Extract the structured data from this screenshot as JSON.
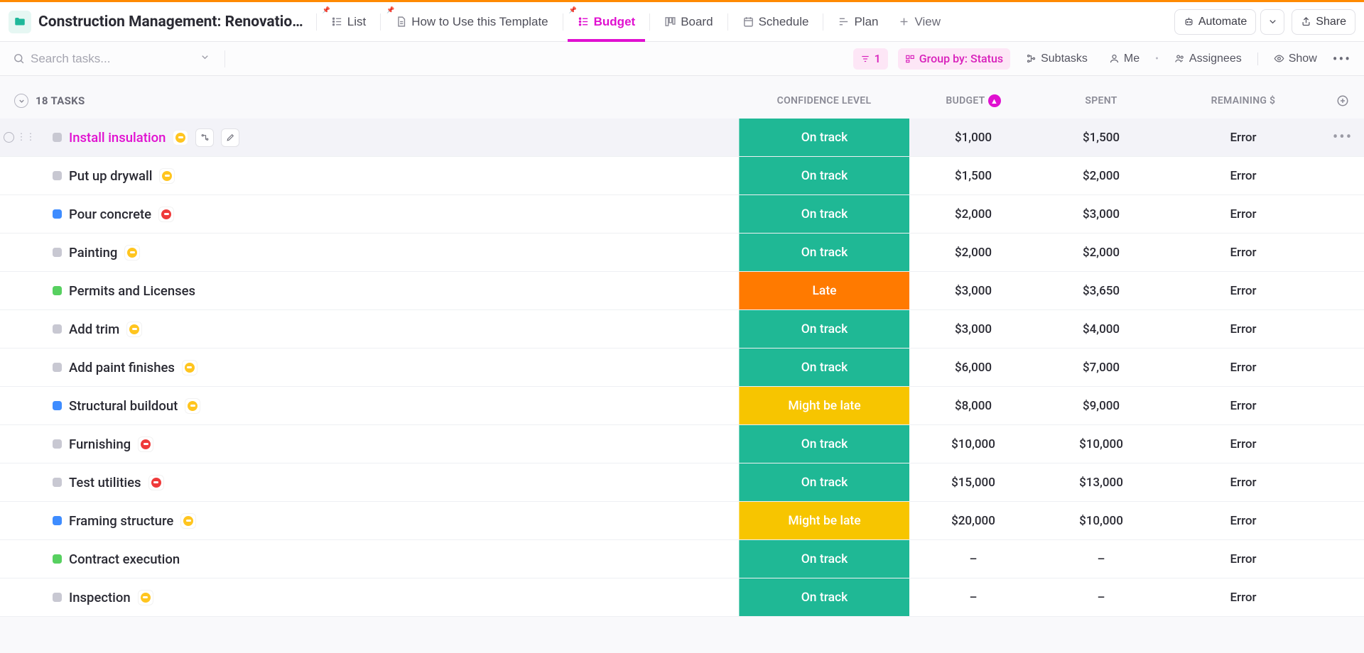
{
  "header": {
    "title": "Construction Management: Renovatio…",
    "tabs": [
      {
        "label": "List",
        "icon": "list",
        "active": false,
        "pinned": true
      },
      {
        "label": "How to Use this Template",
        "icon": "doc",
        "active": false,
        "pinned": true
      },
      {
        "label": "Budget",
        "icon": "list",
        "active": true,
        "pinned": true
      },
      {
        "label": "Board",
        "icon": "board",
        "active": false,
        "pinned": false
      },
      {
        "label": "Schedule",
        "icon": "calendar",
        "active": false,
        "pinned": false
      },
      {
        "label": "Plan",
        "icon": "gantt",
        "active": false,
        "pinned": false
      }
    ],
    "add_view_label": "View",
    "automate_label": "Automate",
    "share_label": "Share"
  },
  "toolbar": {
    "search_placeholder": "Search tasks...",
    "filter_count": "1",
    "group_label": "Group by: Status",
    "subtasks_label": "Subtasks",
    "me_label": "Me",
    "assignees_label": "Assignees",
    "show_label": "Show"
  },
  "table": {
    "tasks_count_label": "18 TASKS",
    "columns": {
      "confidence": "CONFIDENCE LEVEL",
      "budget": "BUDGET",
      "spent": "SPENT",
      "remaining": "REMAINING $"
    },
    "budget_sort_dir": "asc"
  },
  "colors": {
    "status_grey": "#c8c8d2",
    "status_blue": "#3e8cff",
    "status_green": "#57d060",
    "accent_pink": "#e010d0",
    "confidence": {
      "On track": "#1fb895",
      "Late": "#ff7a00",
      "Might be late": "#f7c500"
    }
  },
  "tasks": [
    {
      "name": "Install insulation",
      "name_color": "pink",
      "hover": true,
      "status": "grey",
      "priority": "yellow",
      "confidence": "On track",
      "budget": "$1,000",
      "spent": "$1,500",
      "remaining": "Error"
    },
    {
      "name": "Put up drywall",
      "status": "grey",
      "priority": "yellow",
      "confidence": "On track",
      "budget": "$1,500",
      "spent": "$2,000",
      "remaining": "Error"
    },
    {
      "name": "Pour concrete",
      "status": "blue",
      "priority": "red",
      "confidence": "On track",
      "budget": "$2,000",
      "spent": "$3,000",
      "remaining": "Error"
    },
    {
      "name": "Painting",
      "status": "grey",
      "priority": "yellow",
      "confidence": "On track",
      "budget": "$2,000",
      "spent": "$2,000",
      "remaining": "Error"
    },
    {
      "name": "Permits and Licenses",
      "status": "green",
      "priority": "none",
      "confidence": "Late",
      "budget": "$3,000",
      "spent": "$3,650",
      "remaining": "Error"
    },
    {
      "name": "Add trim",
      "status": "grey",
      "priority": "yellow",
      "confidence": "On track",
      "budget": "$3,000",
      "spent": "$4,000",
      "remaining": "Error"
    },
    {
      "name": "Add paint finishes",
      "status": "grey",
      "priority": "yellow",
      "confidence": "On track",
      "budget": "$6,000",
      "spent": "$7,000",
      "remaining": "Error"
    },
    {
      "name": "Structural buildout",
      "status": "blue",
      "priority": "yellow",
      "confidence": "Might be late",
      "budget": "$8,000",
      "spent": "$9,000",
      "remaining": "Error"
    },
    {
      "name": "Furnishing",
      "status": "grey",
      "priority": "red",
      "confidence": "On track",
      "budget": "$10,000",
      "spent": "$10,000",
      "remaining": "Error"
    },
    {
      "name": "Test utilities",
      "status": "grey",
      "priority": "red",
      "confidence": "On track",
      "budget": "$15,000",
      "spent": "$13,000",
      "remaining": "Error"
    },
    {
      "name": "Framing structure",
      "status": "blue",
      "priority": "yellow",
      "confidence": "Might be late",
      "budget": "$20,000",
      "spent": "$10,000",
      "remaining": "Error"
    },
    {
      "name": "Contract execution",
      "status": "green",
      "priority": "none",
      "confidence": "On track",
      "budget": "–",
      "spent": "–",
      "remaining": "Error"
    },
    {
      "name": "Inspection",
      "status": "grey",
      "priority": "yellow",
      "confidence": "On track",
      "budget": "–",
      "spent": "–",
      "remaining": "Error"
    }
  ]
}
